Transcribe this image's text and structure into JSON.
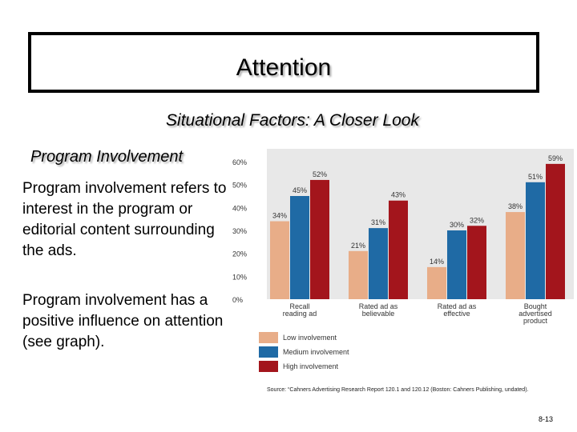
{
  "slide": {
    "title": "Attention",
    "subtitle": "Situational Factors: A Closer Look",
    "heading": "Program Involvement",
    "paragraph1": "Program involvement refers to interest in the program or editorial content surrounding the ads.",
    "paragraph2": "Program involvement has a positive influence on attention (see graph).",
    "source": "Source: “Cahners Advertising Research Report 120.1 and 120.12 (Boston: Cahners Publishing, undated).",
    "page_number": "8-13"
  },
  "chart_data": {
    "type": "bar",
    "categories": [
      [
        "Recall",
        "reading ad"
      ],
      [
        "Rated ad as",
        "believable"
      ],
      [
        "Rated ad as",
        "effective"
      ],
      [
        "Bought",
        "advertised",
        "product"
      ]
    ],
    "series": [
      {
        "name": "Low involvement",
        "color": "#e8ad88",
        "values": [
          34,
          21,
          14,
          38
        ]
      },
      {
        "name": "Medium involvement",
        "color": "#1f6aa5",
        "values": [
          45,
          31,
          30,
          51
        ]
      },
      {
        "name": "High involvement",
        "color": "#a3151c",
        "values": [
          52,
          43,
          32,
          59
        ]
      }
    ],
    "value_labels": [
      [
        "34%",
        "21%",
        "14%",
        "38%"
      ],
      [
        "45%",
        "31%",
        "30%",
        "51%"
      ],
      [
        "52%",
        "43%",
        "32%",
        "59%"
      ]
    ],
    "yticks": [
      "0%",
      "10%",
      "20%",
      "30%",
      "40%",
      "50%",
      "60%"
    ],
    "ylim": [
      0,
      60
    ],
    "legend_position": "bottom-left",
    "background_color": "#e8e8e8"
  }
}
